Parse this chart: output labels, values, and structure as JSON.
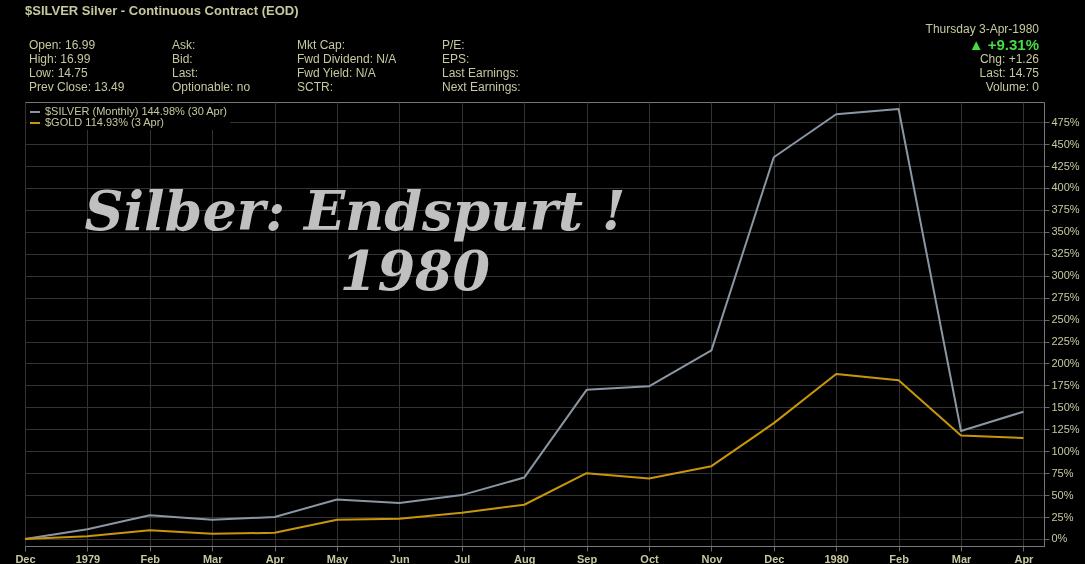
{
  "chart_data": {
    "type": "line",
    "title": "$SILVER Silver - Continuous Contract (EOD)",
    "categories": [
      "Dec",
      "1979",
      "Feb",
      "Mar",
      "Apr",
      "May",
      "Jun",
      "Jul",
      "Aug",
      "Sep",
      "Oct",
      "Nov",
      "Dec",
      "1980",
      "Feb",
      "Mar",
      "Apr"
    ],
    "series": [
      {
        "name": "$SILVER (Monthly) 144.98% (30 Apr)",
        "color": "#8a96a3",
        "values": [
          0,
          11,
          27,
          22,
          25,
          45,
          41,
          50,
          70,
          170,
          174,
          215,
          435,
          484,
          490,
          123,
          145
        ]
      },
      {
        "name": "$GOLD 114.93% (3 Apr)",
        "color": "#c8960c",
        "values": [
          0,
          3,
          10,
          6,
          7,
          22,
          23,
          30,
          39,
          75,
          69,
          83,
          132,
          188,
          181,
          118,
          115
        ]
      }
    ],
    "ylim": [
      -8,
      498
    ],
    "yticks": [
      {
        "value": 0,
        "label": "0%"
      },
      {
        "value": 25,
        "label": "25%"
      },
      {
        "value": 50,
        "label": "50%"
      },
      {
        "value": 75,
        "label": "75%"
      },
      {
        "value": 100,
        "label": "100%"
      },
      {
        "value": 125,
        "label": "125%"
      },
      {
        "value": 150,
        "label": "150%"
      },
      {
        "value": 175,
        "label": "175%"
      },
      {
        "value": 200,
        "label": "200%"
      },
      {
        "value": 225,
        "label": "225%"
      },
      {
        "value": 250,
        "label": "250%"
      },
      {
        "value": 275,
        "label": "275%"
      },
      {
        "value": 300,
        "label": "300%"
      },
      {
        "value": 325,
        "label": "325%"
      },
      {
        "value": 350,
        "label": "350%"
      },
      {
        "value": 375,
        "label": "375%"
      },
      {
        "value": 400,
        "label": "400%"
      },
      {
        "value": 425,
        "label": "425%"
      },
      {
        "value": 450,
        "label": "450%"
      },
      {
        "value": 475,
        "label": "475%"
      }
    ],
    "grid": true,
    "legend": "top left",
    "annotations": [
      "Silber: Endspurt !",
      "1980",
      "Open: 16.99",
      "High: 16.99",
      "Low: 14.75",
      "Prev Close: 13.49",
      "Ask:",
      "Bid:",
      "Last:",
      "Optionable: no",
      "Mkt Cap:",
      "Fwd Dividend: N/A",
      "Fwd Yield: N/A",
      "SCTR:",
      "P/E:",
      "EPS:",
      "Last Earnings:",
      "Next Earnings:",
      "Thursday 3-Apr-1980",
      "▲ +9.31%",
      "Chg: +1.26",
      "Last: 14.75",
      "Volume: 0"
    ]
  }
}
